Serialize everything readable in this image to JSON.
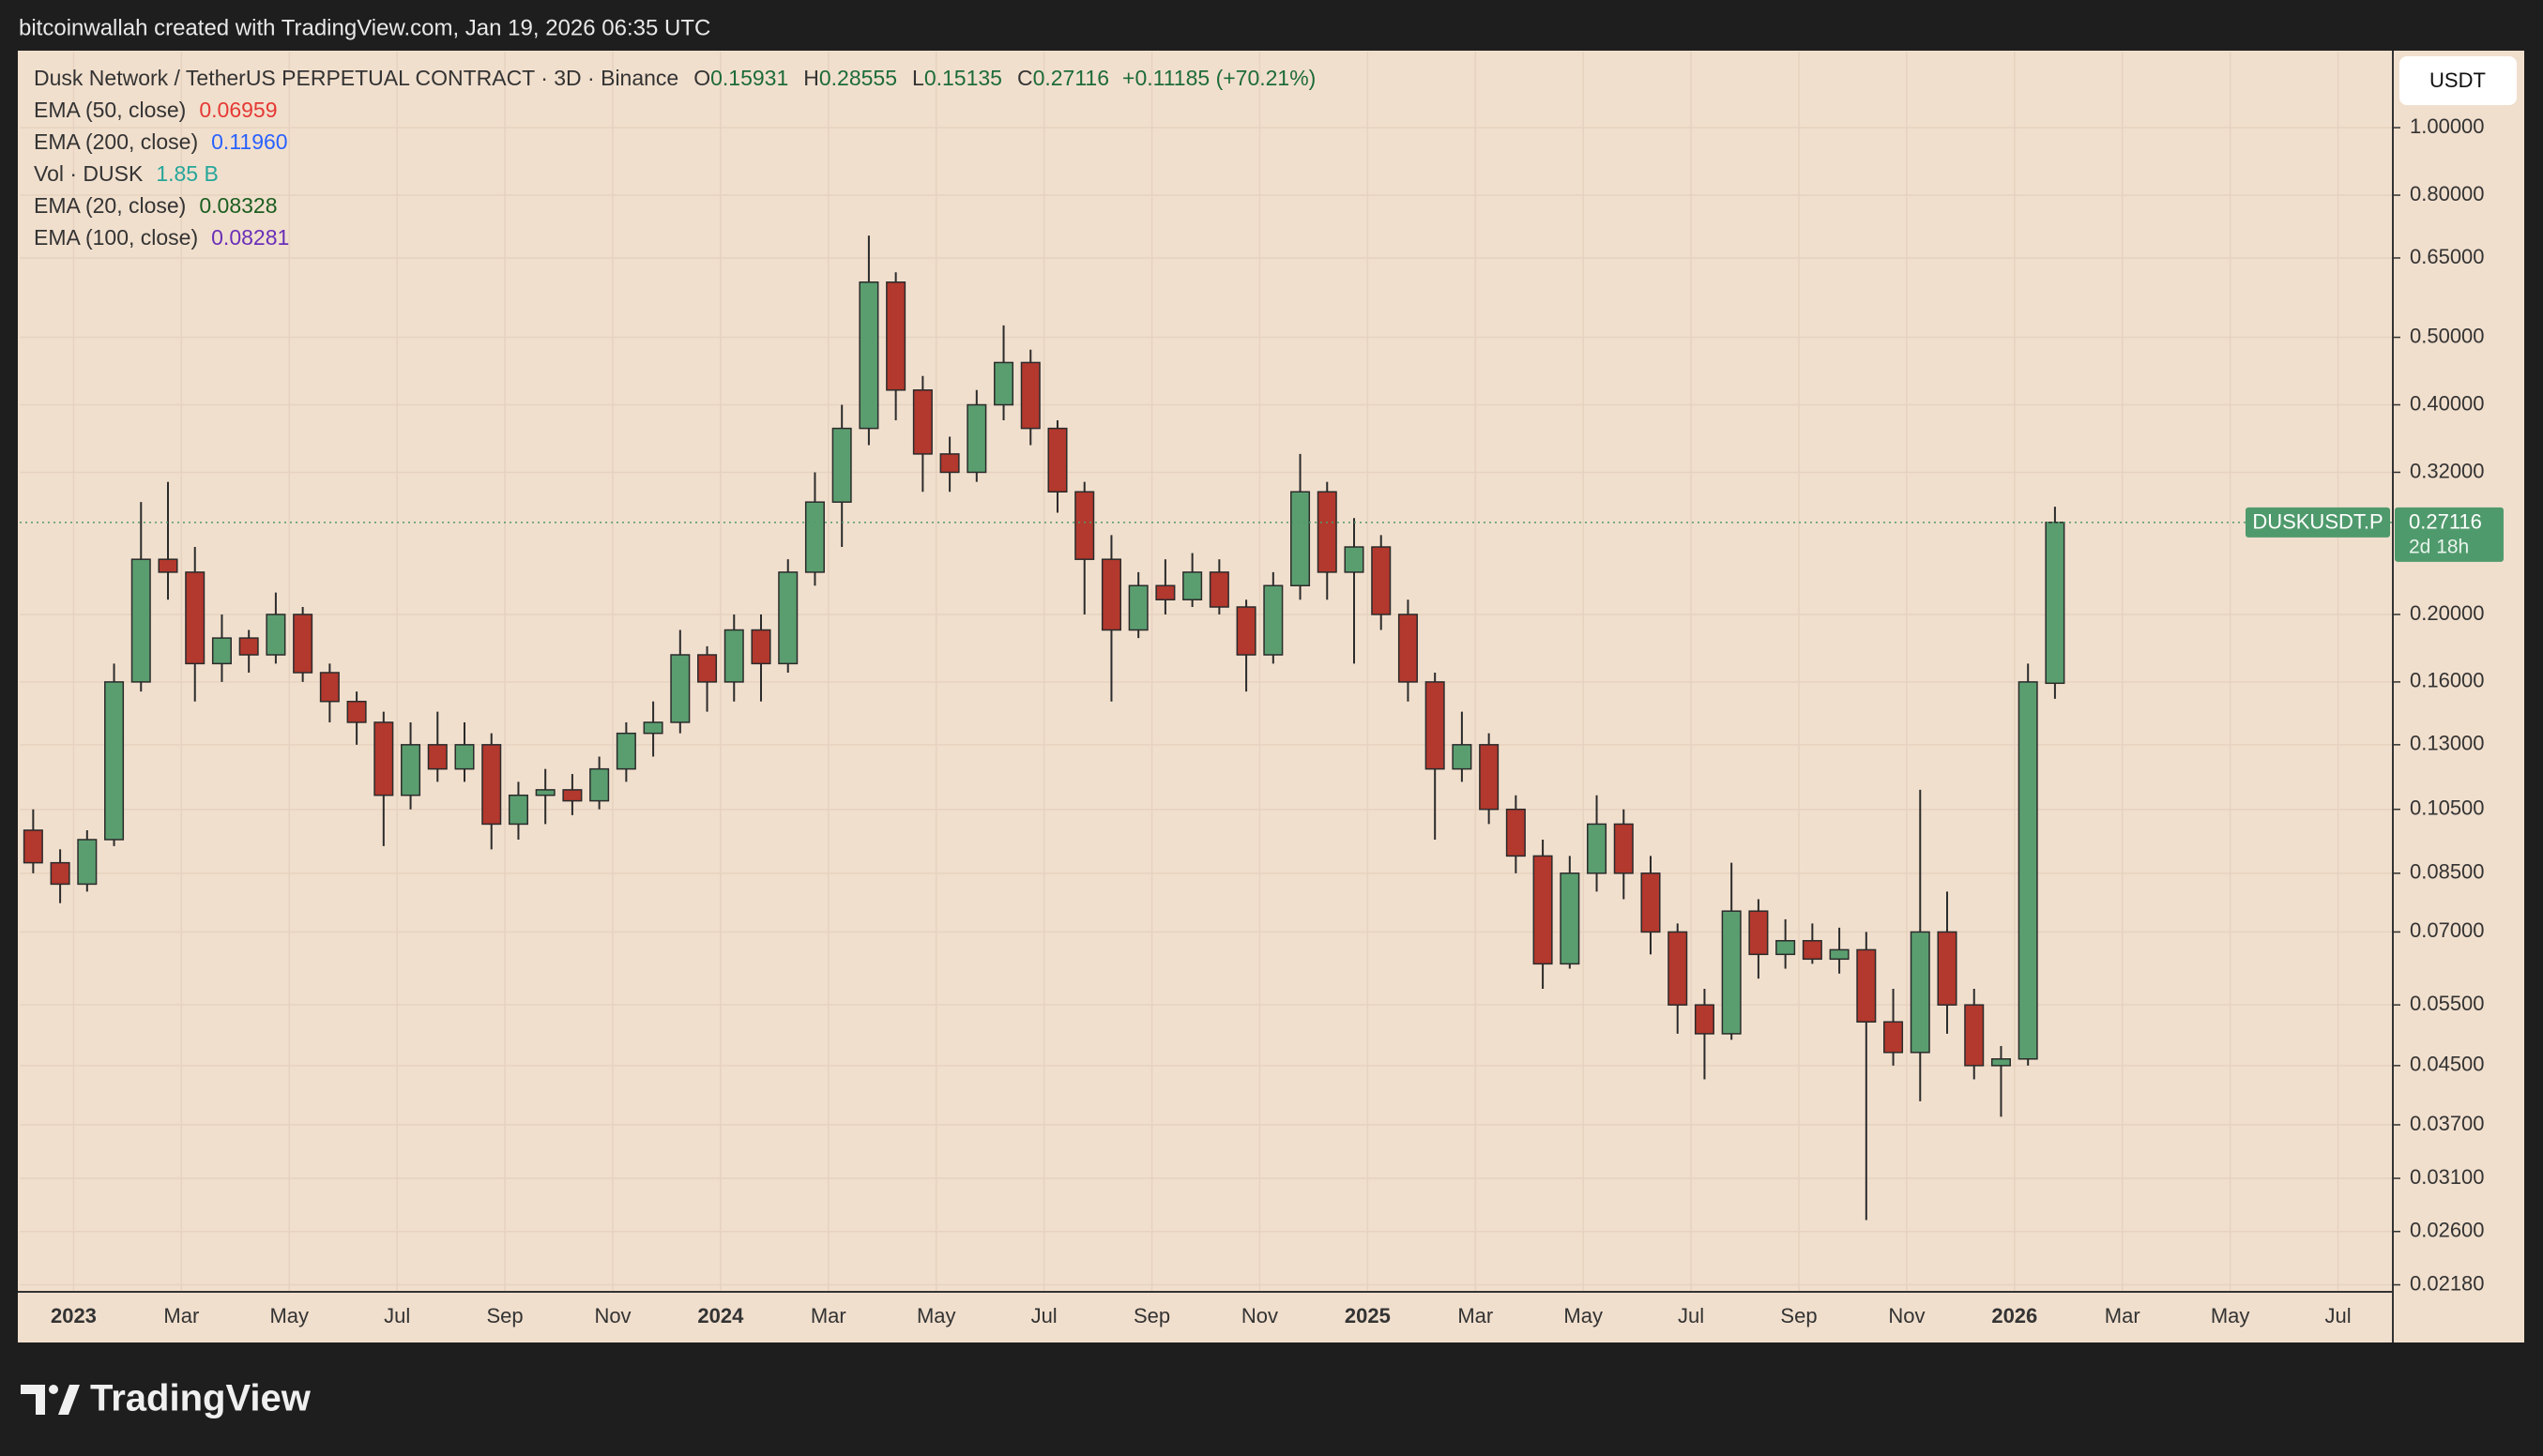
{
  "chart_data": {
    "type": "candlestick",
    "attribution": "bitcoinwallah created with TradingView.com, Jan 19, 2026 06:35 UTC",
    "title": "Dusk Network / TetherUS PERPETUAL CONTRACT · 3D · Binance",
    "ohlc_header": [
      {
        "label": "O",
        "value": "0.15931"
      },
      {
        "label": "H",
        "value": "0.28555"
      },
      {
        "label": "L",
        "value": "0.15135"
      },
      {
        "label": "C",
        "value": "0.27116"
      }
    ],
    "change": "+0.11185 (+70.21%)",
    "indicators": [
      {
        "name": "EMA (50, close)",
        "value": "0.06959",
        "color": "#e53935"
      },
      {
        "name": "EMA (200, close)",
        "value": "0.11960",
        "color": "#2962ff"
      },
      {
        "name": "Vol · DUSK",
        "value": "1.85 B",
        "color": "#26a69a"
      },
      {
        "name": "EMA (20, close)",
        "value": "0.08328",
        "color": "#1b5e20"
      },
      {
        "name": "EMA (100, close)",
        "value": "0.08281",
        "color": "#6a2fb8"
      }
    ],
    "currency": "USDT",
    "ticker": "DUSKUSDT.P",
    "last_price": 0.27116,
    "countdown": "2d 18h",
    "brand": "TradingView",
    "categories": [
      null,
      null,
      "2023",
      null,
      null,
      null,
      "Mar",
      null,
      null,
      null,
      "May",
      null,
      null,
      null,
      "Jul",
      null,
      null,
      null,
      "Sep",
      null,
      null,
      null,
      "Nov",
      null,
      null,
      null,
      "2024",
      null,
      null,
      null,
      "Mar",
      null,
      null,
      null,
      "May",
      null,
      null,
      null,
      "Jul",
      null,
      null,
      null,
      "Sep",
      null,
      null,
      null,
      "Nov",
      null,
      null,
      null,
      "2025",
      null,
      null,
      null,
      "Mar",
      null,
      null,
      null,
      "May",
      null,
      null,
      null,
      "Jul",
      null,
      null,
      null,
      "Sep",
      null,
      null,
      null,
      "Nov",
      null,
      null,
      null,
      "2026",
      null,
      null,
      null,
      "Mar",
      null,
      null,
      null,
      "May",
      null,
      null,
      null,
      "Jul",
      null
    ],
    "open": [
      0.098,
      0.088,
      0.082,
      0.095,
      0.16,
      0.24,
      0.23,
      0.17,
      0.185,
      0.175,
      0.2,
      0.165,
      0.15,
      0.14,
      0.11,
      0.13,
      0.12,
      0.13,
      0.1,
      0.11,
      0.112,
      0.108,
      0.12,
      0.135,
      0.14,
      0.175,
      0.16,
      0.19,
      0.17,
      0.23,
      0.29,
      0.37,
      0.6,
      0.42,
      0.34,
      0.32,
      0.4,
      0.46,
      0.37,
      0.3,
      0.24,
      0.19,
      0.22,
      0.21,
      0.23,
      0.205,
      0.175,
      0.22,
      0.3,
      0.23,
      0.25,
      0.2,
      0.16,
      0.12,
      0.13,
      0.105,
      0.09,
      0.063,
      0.085,
      0.1,
      0.085,
      0.07,
      0.055,
      0.05,
      0.075,
      0.065,
      0.068,
      0.064,
      0.066,
      0.052,
      0.047,
      0.07,
      0.055,
      0.045,
      0.046,
      0.15931,
      null,
      null,
      null,
      null,
      null,
      null,
      null,
      null,
      null,
      null,
      null,
      null
    ],
    "high": [
      0.105,
      0.092,
      0.098,
      0.17,
      0.29,
      0.31,
      0.25,
      0.2,
      0.19,
      0.215,
      0.205,
      0.17,
      0.155,
      0.145,
      0.14,
      0.145,
      0.14,
      0.135,
      0.115,
      0.12,
      0.118,
      0.125,
      0.14,
      0.15,
      0.19,
      0.18,
      0.2,
      0.2,
      0.24,
      0.32,
      0.4,
      0.7,
      0.62,
      0.44,
      0.36,
      0.42,
      0.52,
      0.48,
      0.38,
      0.31,
      0.26,
      0.23,
      0.24,
      0.245,
      0.24,
      0.21,
      0.23,
      0.34,
      0.31,
      0.275,
      0.26,
      0.21,
      0.165,
      0.145,
      0.135,
      0.11,
      0.095,
      0.09,
      0.11,
      0.105,
      0.09,
      0.072,
      0.058,
      0.088,
      0.078,
      0.073,
      0.072,
      0.071,
      0.07,
      0.058,
      0.112,
      0.08,
      0.058,
      0.048,
      0.17,
      0.28555,
      null,
      null,
      null,
      null,
      null,
      null,
      null,
      null,
      null,
      null,
      null,
      null
    ],
    "low": [
      0.085,
      0.077,
      0.08,
      0.093,
      0.155,
      0.21,
      0.15,
      0.16,
      0.165,
      0.17,
      0.16,
      0.14,
      0.13,
      0.093,
      0.105,
      0.115,
      0.115,
      0.092,
      0.095,
      0.1,
      0.103,
      0.105,
      0.115,
      0.125,
      0.135,
      0.145,
      0.15,
      0.15,
      0.165,
      0.22,
      0.25,
      0.35,
      0.38,
      0.3,
      0.3,
      0.31,
      0.38,
      0.35,
      0.28,
      0.2,
      0.15,
      0.185,
      0.2,
      0.205,
      0.2,
      0.155,
      0.17,
      0.21,
      0.21,
      0.17,
      0.19,
      0.15,
      0.095,
      0.115,
      0.1,
      0.085,
      0.058,
      0.062,
      0.08,
      0.078,
      0.065,
      0.05,
      0.043,
      0.049,
      0.06,
      0.062,
      0.063,
      0.061,
      0.027,
      0.045,
      0.04,
      0.05,
      0.043,
      0.038,
      0.045,
      0.15135,
      null,
      null,
      null,
      null,
      null,
      null,
      null,
      null,
      null,
      null,
      null,
      null
    ],
    "close": [
      0.088,
      0.082,
      0.095,
      0.16,
      0.24,
      0.23,
      0.17,
      0.185,
      0.175,
      0.2,
      0.165,
      0.15,
      0.14,
      0.11,
      0.13,
      0.12,
      0.13,
      0.1,
      0.11,
      0.112,
      0.108,
      0.12,
      0.135,
      0.14,
      0.175,
      0.16,
      0.19,
      0.17,
      0.23,
      0.29,
      0.37,
      0.6,
      0.42,
      0.34,
      0.32,
      0.4,
      0.46,
      0.37,
      0.3,
      0.24,
      0.19,
      0.22,
      0.21,
      0.23,
      0.205,
      0.175,
      0.22,
      0.3,
      0.23,
      0.25,
      0.2,
      0.16,
      0.12,
      0.13,
      0.105,
      0.09,
      0.063,
      0.085,
      0.1,
      0.085,
      0.07,
      0.055,
      0.05,
      0.075,
      0.065,
      0.068,
      0.064,
      0.066,
      0.052,
      0.047,
      0.07,
      0.055,
      0.045,
      0.046,
      0.16,
      0.27116,
      null,
      null,
      null,
      null,
      null,
      null,
      null,
      null,
      null,
      null,
      null,
      null
    ],
    "up_color": "#5a9e6f",
    "down_color": "#b3382d",
    "wick_color": "#2b2b2b",
    "price_line_color": "#4f9a6c",
    "log_scale": true,
    "grid": true,
    "ylim": [
      0.0213,
      1.286
    ],
    "yticks": [
      {
        "value": 1,
        "label": "1.00000"
      },
      {
        "value": 0.8,
        "label": "0.80000"
      },
      {
        "value": 0.65,
        "label": "0.65000"
      },
      {
        "value": 0.5,
        "label": "0.50000"
      },
      {
        "value": 0.4,
        "label": "0.40000"
      },
      {
        "value": 0.32,
        "label": "0.32000"
      },
      {
        "value": 0.2,
        "label": "0.20000"
      },
      {
        "value": 0.16,
        "label": "0.16000"
      },
      {
        "value": 0.13,
        "label": "0.13000"
      },
      {
        "value": 0.105,
        "label": "0.10500"
      },
      {
        "value": 0.085,
        "label": "0.08500"
      },
      {
        "value": 0.07,
        "label": "0.07000"
      },
      {
        "value": 0.055,
        "label": "0.05500"
      },
      {
        "value": 0.045,
        "label": "0.04500"
      },
      {
        "value": 0.037,
        "label": "0.03700"
      },
      {
        "value": 0.031,
        "label": "0.03100"
      },
      {
        "value": 0.026,
        "label": "0.02600"
      },
      {
        "value": 0.0218,
        "label": "0.02180"
      }
    ]
  }
}
